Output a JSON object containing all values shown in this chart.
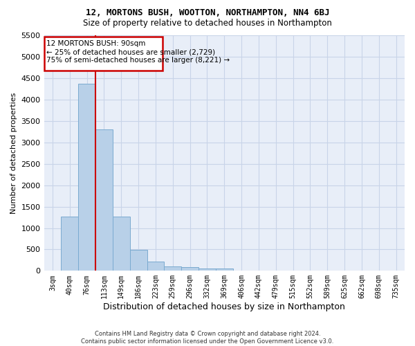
{
  "title1": "12, MORTONS BUSH, WOOTTON, NORTHAMPTON, NN4 6BJ",
  "title2": "Size of property relative to detached houses in Northampton",
  "xlabel": "Distribution of detached houses by size in Northampton",
  "ylabel": "Number of detached properties",
  "footer1": "Contains HM Land Registry data © Crown copyright and database right 2024.",
  "footer2": "Contains public sector information licensed under the Open Government Licence v3.0.",
  "categories": [
    "3sqm",
    "40sqm",
    "76sqm",
    "113sqm",
    "149sqm",
    "186sqm",
    "223sqm",
    "259sqm",
    "296sqm",
    "332sqm",
    "369sqm",
    "406sqm",
    "442sqm",
    "479sqm",
    "515sqm",
    "552sqm",
    "589sqm",
    "625sqm",
    "662sqm",
    "698sqm",
    "735sqm"
  ],
  "values": [
    0,
    1270,
    4370,
    3310,
    1270,
    490,
    220,
    100,
    80,
    55,
    55,
    0,
    0,
    0,
    0,
    0,
    0,
    0,
    0,
    0,
    0
  ],
  "bar_color": "#b8d0e8",
  "bar_edge_color": "#7aaad0",
  "annotation_box_color": "#cc0000",
  "annotation_line_color": "#cc0000",
  "annotation_title": "12 MORTONS BUSH: 90sqm",
  "annotation_line1": "← 25% of detached houses are smaller (2,729)",
  "annotation_line2": "75% of semi-detached houses are larger (8,221) →",
  "ylim_max": 5500,
  "yticks": [
    0,
    500,
    1000,
    1500,
    2000,
    2500,
    3000,
    3500,
    4000,
    4500,
    5000,
    5500
  ],
  "grid_color": "#c8d4e8",
  "bg_color": "#e8eef8",
  "red_line_index": 2
}
